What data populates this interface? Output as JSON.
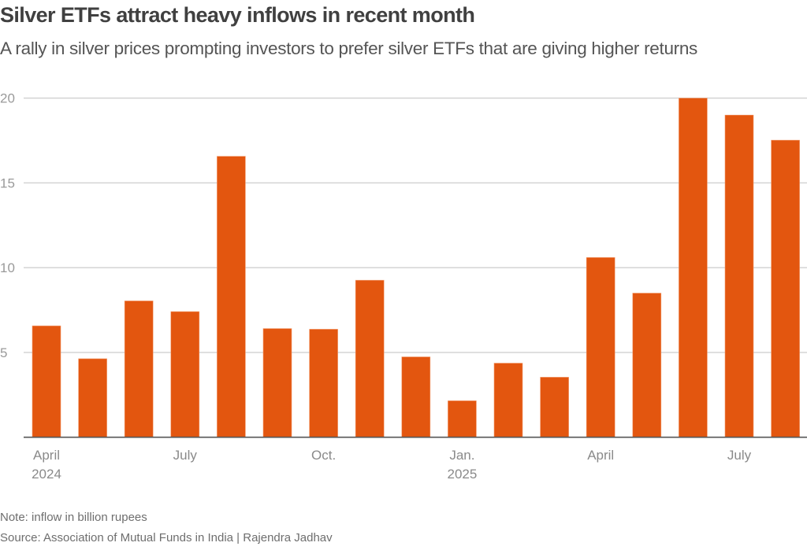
{
  "header": {
    "title": "Silver ETFs attract heavy inflows in recent month",
    "subtitle": "A rally in silver prices prompting investors to prefer silver ETFs that are giving higher returns"
  },
  "footer": {
    "note": "Note: inflow in billion rupees",
    "source": "Source: Association of Mutual Funds in India  | Rajendra Jadhav"
  },
  "colors": {
    "bar": "#E3560F",
    "grid": "#d0d0d0",
    "axis": "#555555"
  },
  "chart_data": {
    "type": "bar",
    "title": "Silver ETFs attract heavy inflows in recent month",
    "subtitle": "A rally in silver prices prompting investors to prefer silver ETFs that are giving higher returns",
    "xlabel": "",
    "ylabel": "",
    "units": "billion rupees",
    "categories": [
      "Apr 2024",
      "May 2024",
      "Jun 2024",
      "Jul 2024",
      "Aug 2024",
      "Sep 2024",
      "Oct 2024",
      "Nov 2024",
      "Dec 2024",
      "Jan 2025",
      "Feb 2025",
      "Mar 2025",
      "Apr 2025",
      "May 2025",
      "Jun 2025",
      "Jul 2025",
      "Aug 2025"
    ],
    "values": [
      6.57,
      4.63,
      8.04,
      7.41,
      16.57,
      6.41,
      6.37,
      9.26,
      4.74,
      2.15,
      4.37,
      3.54,
      10.6,
      8.5,
      20.0,
      19.0,
      17.52
    ],
    "ylim": [
      0,
      20
    ],
    "yticks": [
      5,
      10,
      15,
      20
    ],
    "xtick_labels": [
      {
        "index": 0,
        "lines": [
          "April",
          "2024"
        ]
      },
      {
        "index": 3,
        "lines": [
          "July"
        ]
      },
      {
        "index": 6,
        "lines": [
          "Oct."
        ]
      },
      {
        "index": 9,
        "lines": [
          "Jan.",
          "2025"
        ]
      },
      {
        "index": 12,
        "lines": [
          "April"
        ]
      },
      {
        "index": 15,
        "lines": [
          "July"
        ]
      }
    ],
    "grid": true,
    "legend": "none"
  }
}
